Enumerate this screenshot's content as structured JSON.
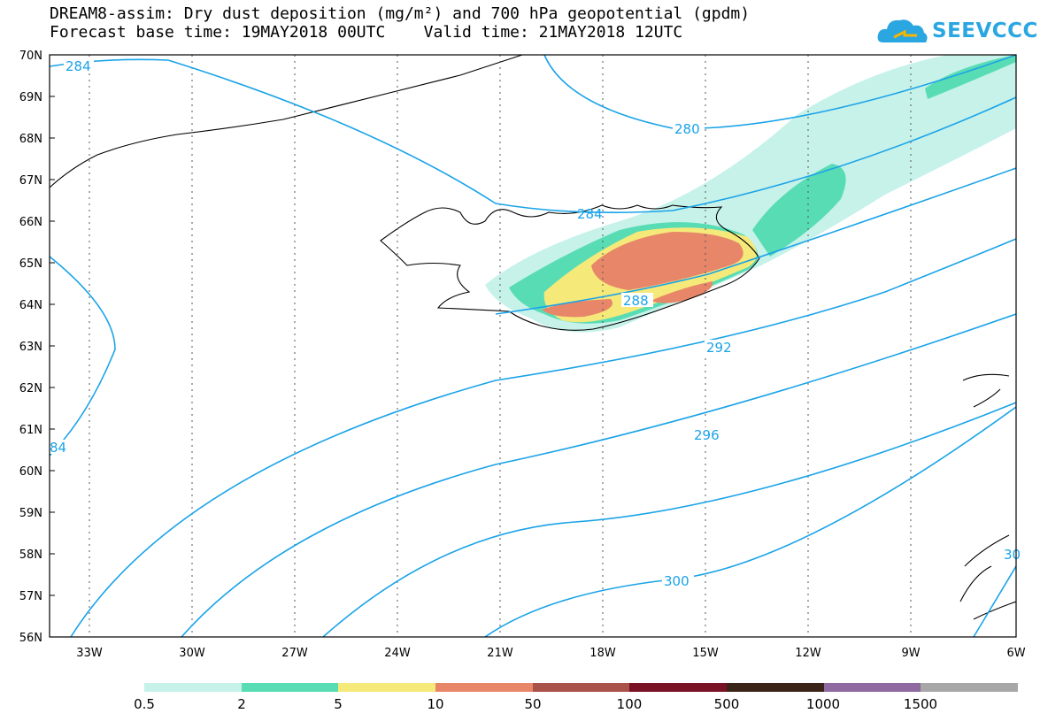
{
  "title": {
    "line1": "DREAM8-assim: Dry dust deposition (mg/m²) and 700 hPa geopotential (gpdm)",
    "line2": "Forecast base time: 19MAY2018 00UTC    Valid time: 21MAY2018 12UTC"
  },
  "brand": {
    "name": "SEEVCCC",
    "icon": "cloud-logo-icon",
    "color": "#2aa6e0"
  },
  "map": {
    "lat_labels": [
      "70N",
      "69N",
      "68N",
      "67N",
      "66N",
      "65N",
      "64N",
      "63N",
      "62N",
      "61N",
      "60N",
      "59N",
      "58N",
      "57N",
      "56N"
    ],
    "lon_labels": [
      "33W",
      "30W",
      "27W",
      "24W",
      "21W",
      "18W",
      "15W",
      "12W",
      "9W",
      "6W"
    ],
    "contour_color": "#1aa3e8",
    "contour_labels": [
      "284",
      "280",
      "284",
      "288",
      "292",
      "296",
      "300",
      "84",
      "30"
    ]
  },
  "legend": {
    "colors": [
      "#c6f2ea",
      "#58dcb4",
      "#f5e97a",
      "#e8866a",
      "#a8524a",
      "#7a1226",
      "#3a2418",
      "#8e6aa0",
      "#a7a7a7"
    ],
    "labels": [
      "0.5",
      "2",
      "5",
      "10",
      "50",
      "100",
      "500",
      "1000",
      "1500"
    ]
  }
}
